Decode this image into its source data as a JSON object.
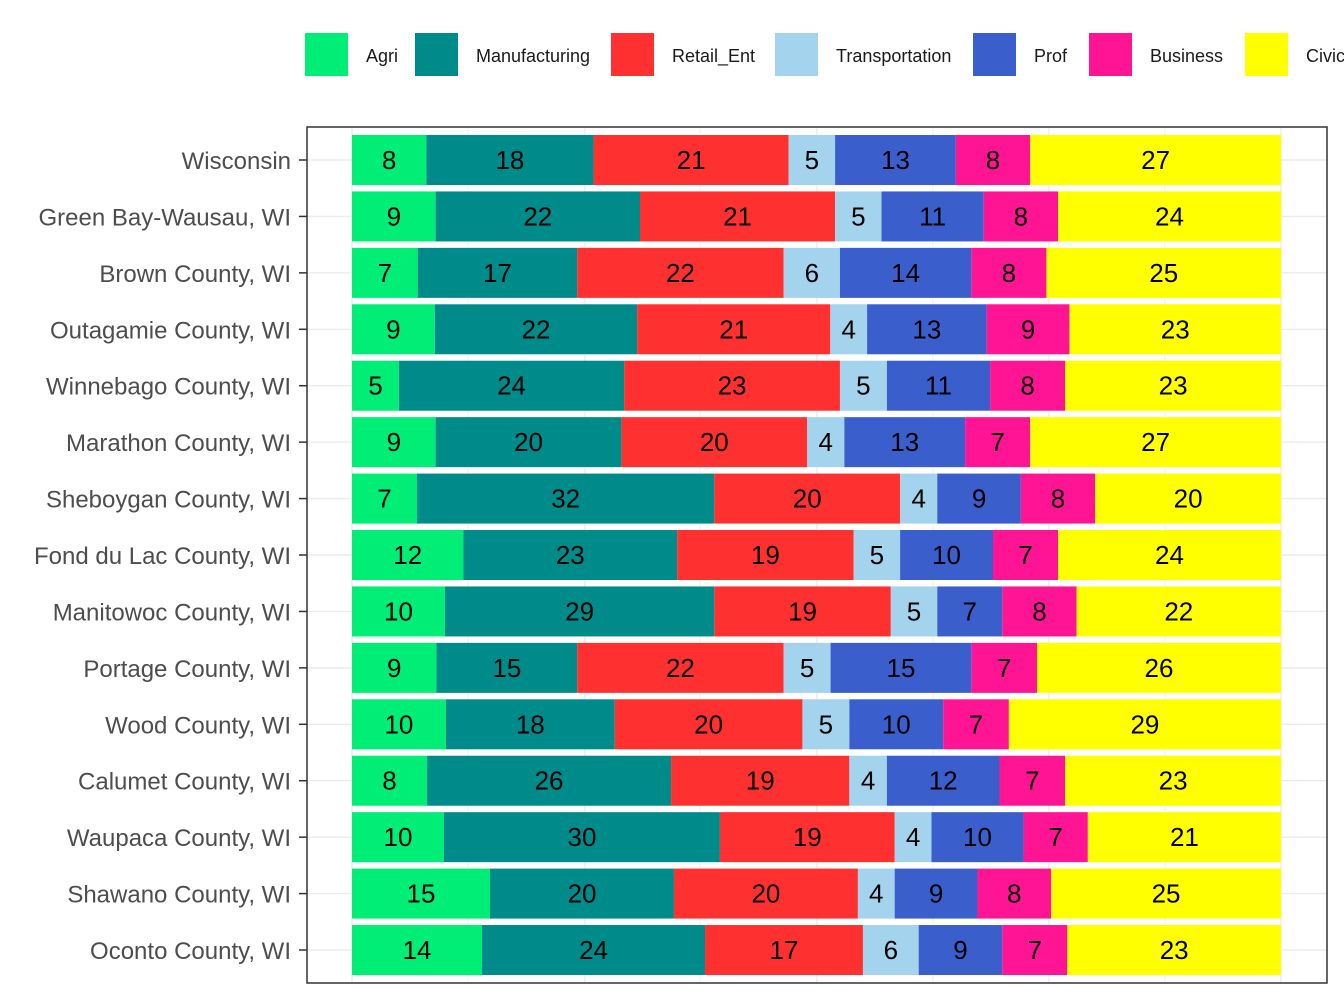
{
  "chart_data": {
    "type": "bar",
    "orientation": "horizontal",
    "stacked": "percent",
    "legend_position": "top",
    "grid": true,
    "xlim": [
      0,
      100
    ],
    "categories": [
      "Wisconsin",
      "Green Bay-Wausau, WI",
      "Brown County, WI",
      "Outagamie County, WI",
      "Winnebago County, WI",
      "Marathon County, WI",
      "Sheboygan County, WI",
      "Fond du Lac County, WI",
      "Manitowoc County, WI",
      "Portage County, WI",
      "Wood County, WI",
      "Calumet County, WI",
      "Waupaca County, WI",
      "Shawano County, WI",
      "Oconto County, WI"
    ],
    "series": [
      {
        "name": "Agri",
        "color": "#00EE76",
        "values": [
          8,
          9,
          7,
          9,
          5,
          9,
          7,
          12,
          10,
          9,
          10,
          8,
          10,
          15,
          14
        ]
      },
      {
        "name": "Manufacturing",
        "color": "#008B8B",
        "values": [
          18,
          22,
          17,
          22,
          24,
          20,
          32,
          23,
          29,
          15,
          18,
          26,
          30,
          20,
          24
        ]
      },
      {
        "name": "Retail_Ent",
        "color": "#FF3030",
        "values": [
          21,
          21,
          22,
          21,
          23,
          20,
          20,
          19,
          19,
          22,
          20,
          19,
          19,
          20,
          17
        ]
      },
      {
        "name": "Transportation",
        "color": "#A4D3EE",
        "values": [
          5,
          5,
          6,
          4,
          5,
          4,
          4,
          5,
          5,
          5,
          5,
          4,
          4,
          4,
          6
        ]
      },
      {
        "name": "Prof",
        "color": "#3A5FCD",
        "values": [
          13,
          11,
          14,
          13,
          11,
          13,
          9,
          10,
          7,
          15,
          10,
          12,
          10,
          9,
          9
        ]
      },
      {
        "name": "Business",
        "color": "#FF1493",
        "values": [
          8,
          8,
          8,
          9,
          8,
          7,
          8,
          7,
          8,
          7,
          7,
          7,
          7,
          8,
          7
        ]
      },
      {
        "name": "Civic",
        "color": "#FFFF00",
        "values": [
          27,
          24,
          25,
          23,
          23,
          27,
          20,
          24,
          22,
          26,
          29,
          23,
          21,
          25,
          23
        ]
      }
    ]
  }
}
